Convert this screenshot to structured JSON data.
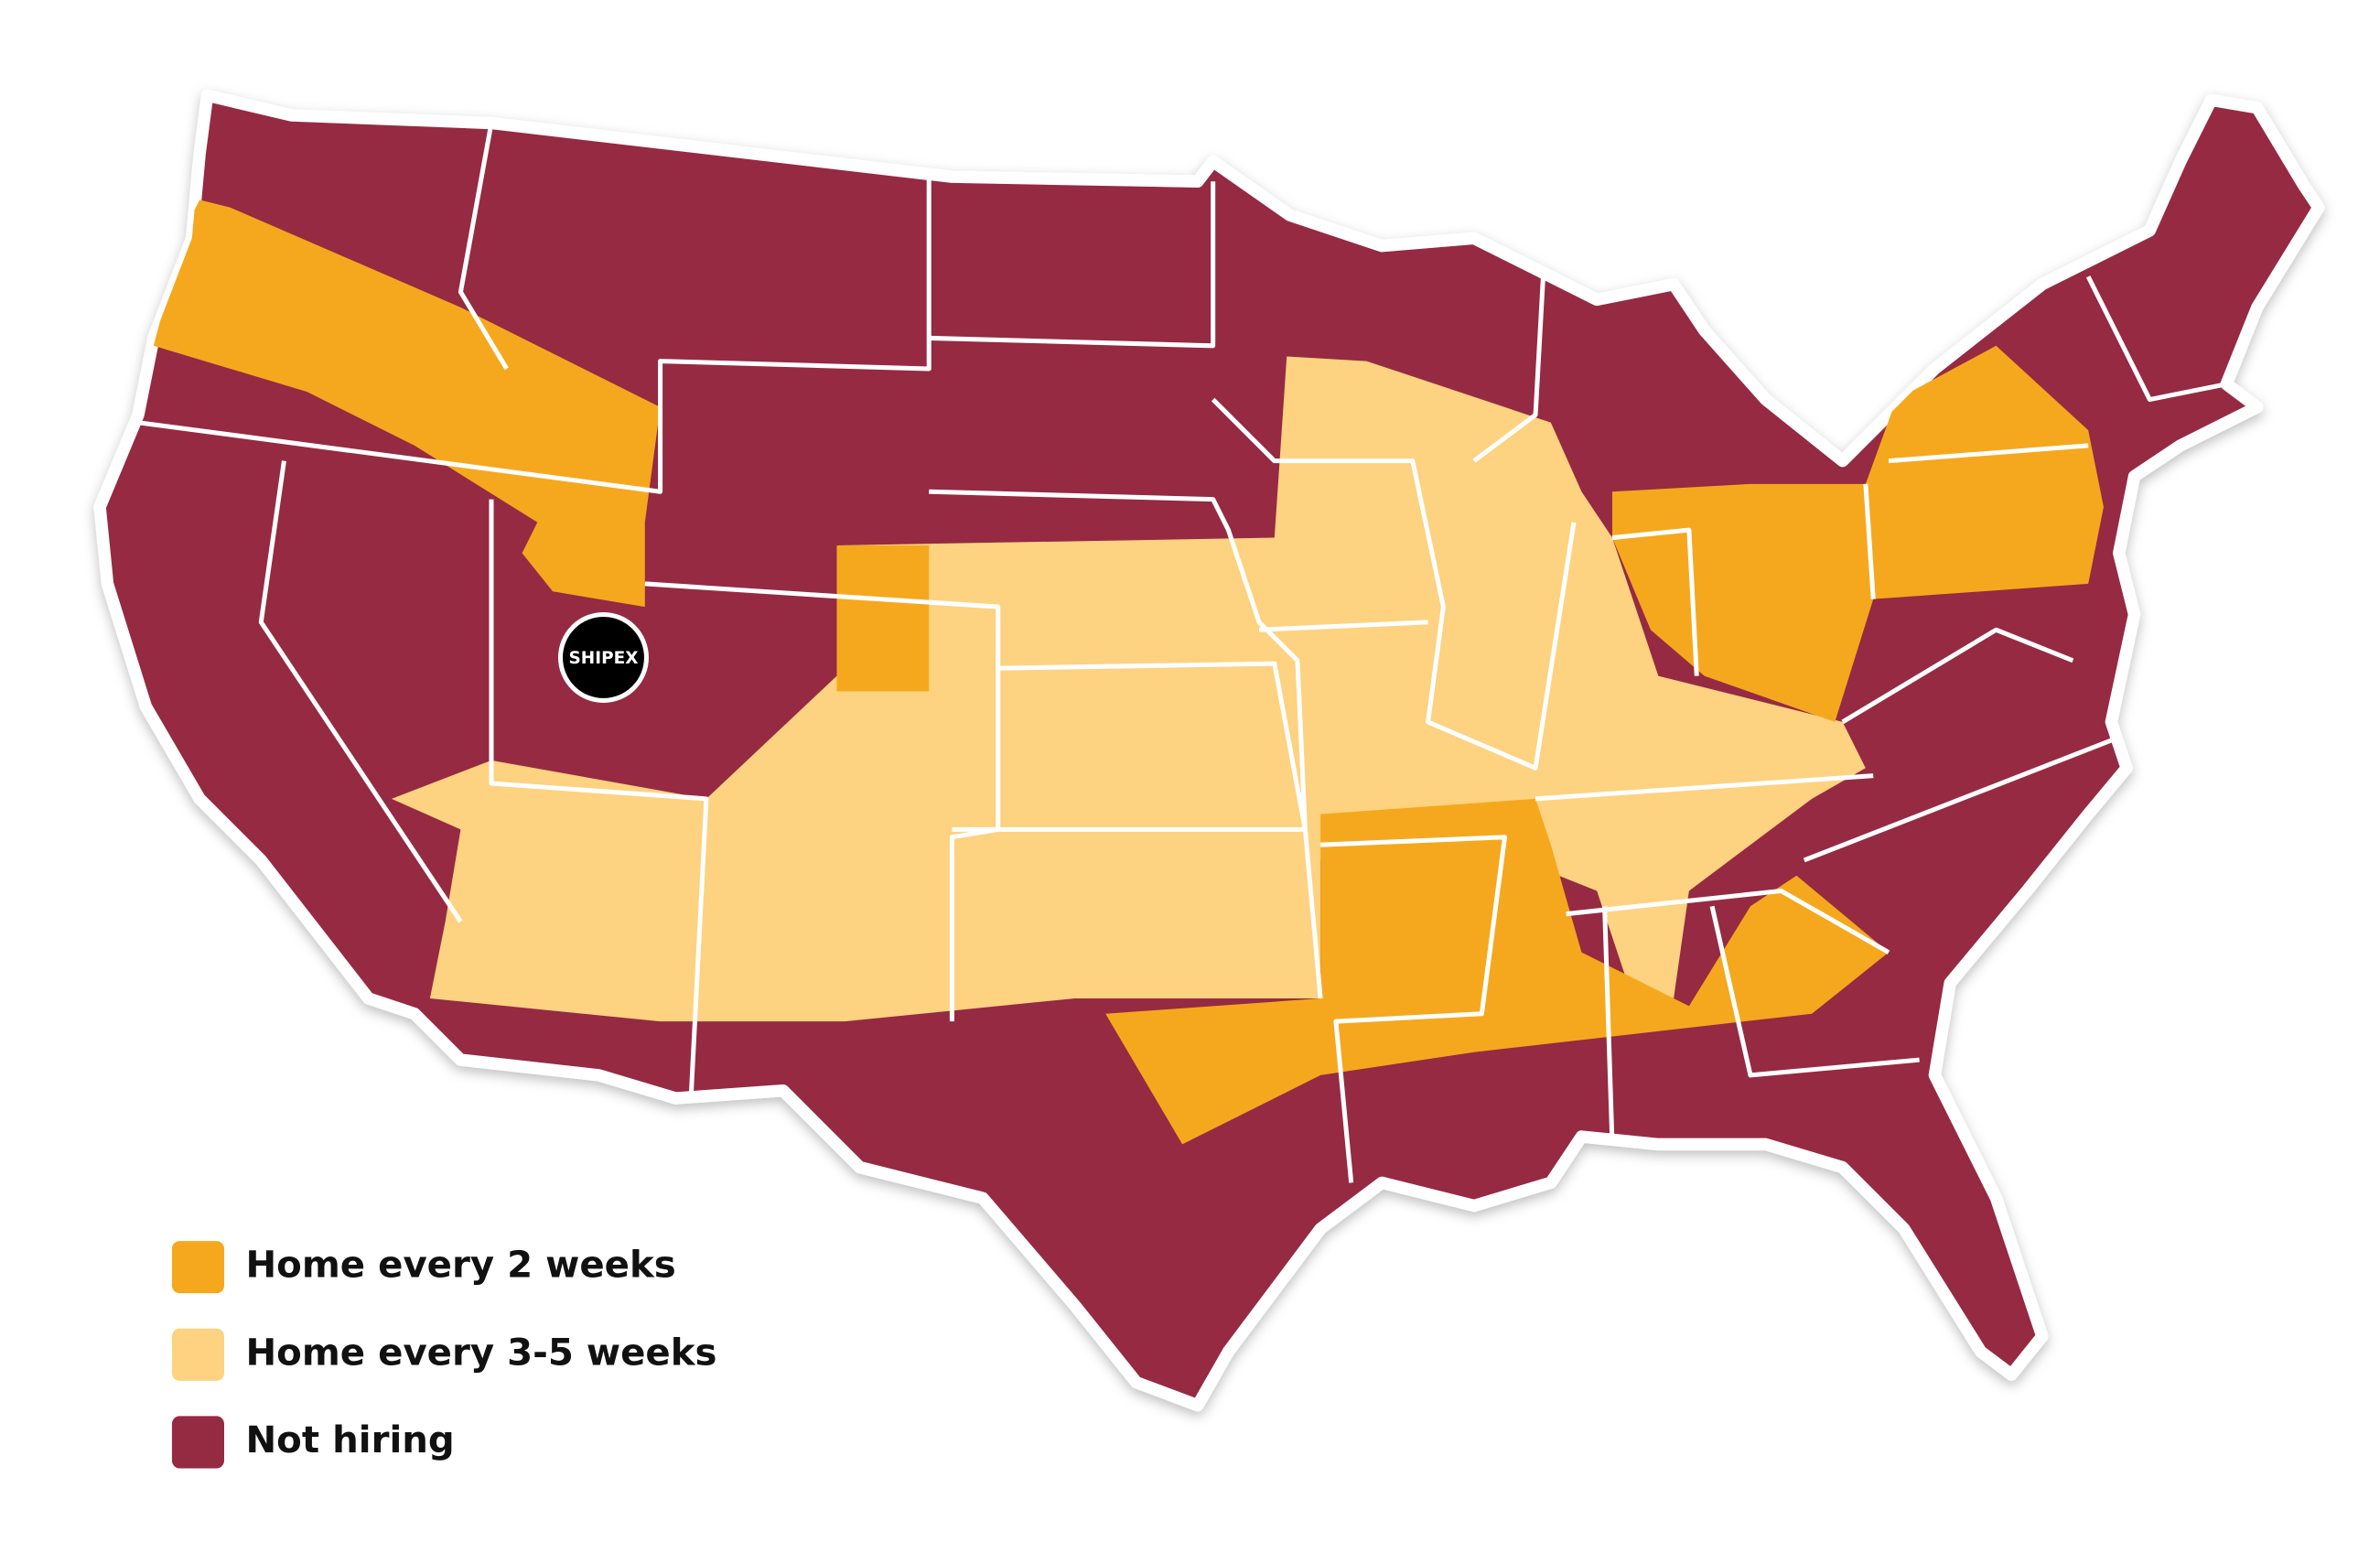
{
  "legend": [
    {
      "label": "Home every 2 weeks",
      "color": "#f5a81d"
    },
    {
      "label": "Home every 3-5 weeks",
      "color": "#fdd280"
    },
    {
      "label": "Not hiring",
      "color": "#952a43"
    }
  ],
  "logo": "SHIPEX"
}
